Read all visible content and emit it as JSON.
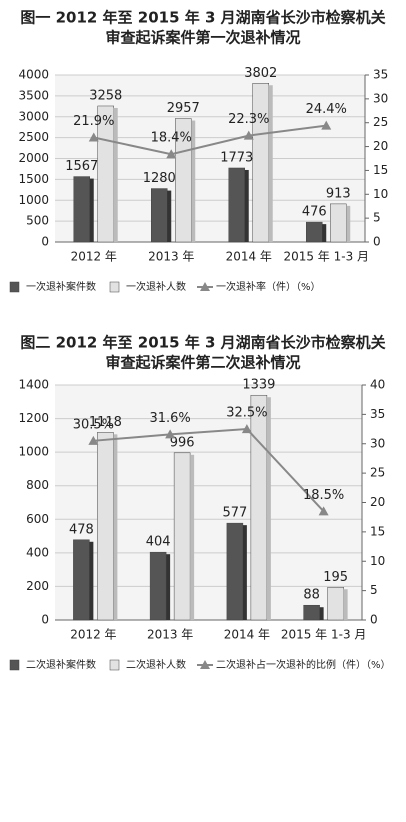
{
  "chart_data": [
    {
      "type": "bar-line",
      "title": [
        "图一 2012 年至 2015 年 3 月湖南省长沙市检察机关",
        "审查起诉案件第一次退补情况"
      ],
      "categories": [
        "2012 年",
        "2013 年",
        "2014 年",
        "2015 年 1-3 月"
      ],
      "series": [
        {
          "name": "一次退补案件数",
          "color": "#555555",
          "type": "bar",
          "values": [
            1567,
            1280,
            1773,
            476
          ]
        },
        {
          "name": "一次退补人数",
          "color": "#e2e2e2",
          "type": "bar",
          "values": [
            3258,
            2957,
            3802,
            913
          ]
        },
        {
          "name": "一次退补率（件）（%）",
          "color": "#888888",
          "type": "line",
          "axis": "y2",
          "values": [
            21.9,
            18.4,
            22.3,
            24.4
          ],
          "value_labels": [
            "21.9%",
            "18.4%",
            "22.3%",
            "24.4%"
          ]
        }
      ],
      "ylim": [
        0,
        4000
      ],
      "yticks": [
        0,
        500,
        1000,
        1500,
        2000,
        2500,
        3000,
        3500,
        4000
      ],
      "y2lim": [
        0,
        35
      ],
      "y2ticks": [
        0,
        5,
        10,
        15,
        20,
        25,
        30,
        35
      ]
    },
    {
      "type": "bar-line",
      "title": [
        "图二 2012 年至 2015 年 3 月湖南省长沙市检察机关",
        "审查起诉案件第二次退补情况"
      ],
      "categories": [
        "2012 年",
        "2013 年",
        "2014 年",
        "2015 年 1-3 月"
      ],
      "series": [
        {
          "name": "二次退补案件数",
          "color": "#555555",
          "type": "bar",
          "values": [
            478,
            404,
            577,
            88
          ]
        },
        {
          "name": "二次退补人数",
          "color": "#e2e2e2",
          "type": "bar",
          "values": [
            1118,
            996,
            1339,
            195
          ]
        },
        {
          "name": "二次退补占一次退补的比例（件）（%）",
          "color": "#888888",
          "type": "line",
          "axis": "y2",
          "values": [
            30.5,
            31.6,
            32.5,
            18.5
          ],
          "value_labels": [
            "30.5%",
            "31.6%",
            "32.5%",
            "18.5%"
          ]
        }
      ],
      "ylim": [
        0,
        1400
      ],
      "yticks": [
        0,
        200,
        400,
        600,
        800,
        1000,
        1200,
        1400
      ],
      "y2lim": [
        0,
        40
      ],
      "y2ticks": [
        0,
        5,
        10,
        15,
        20,
        25,
        30,
        35,
        40
      ]
    }
  ]
}
